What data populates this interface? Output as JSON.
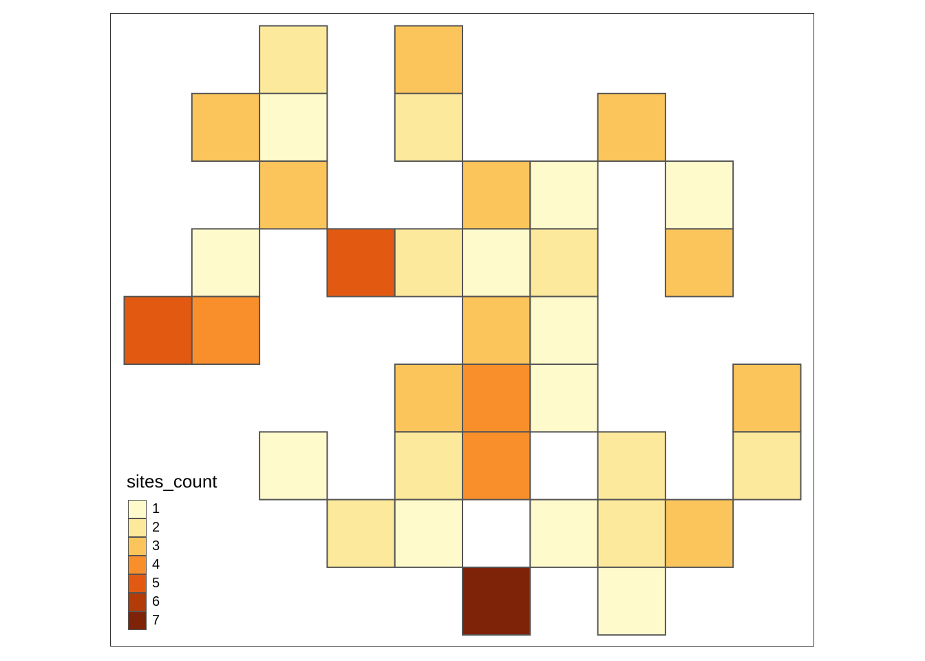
{
  "legend": {
    "title": "sites_count",
    "classes": [
      {
        "label": "1",
        "color": "#FFFACC"
      },
      {
        "label": "2",
        "color": "#FDE99B"
      },
      {
        "label": "3",
        "color": "#FCC55B"
      },
      {
        "label": "4",
        "color": "#F98F2A"
      },
      {
        "label": "5",
        "color": "#E25A12"
      },
      {
        "label": "6",
        "color": "#B33B08"
      },
      {
        "label": "7",
        "color": "#7F2308"
      }
    ]
  },
  "grid": {
    "columns": 10,
    "rows": 9,
    "cells": [
      {
        "col": 2,
        "row": 0,
        "value": 2
      },
      {
        "col": 4,
        "row": 0,
        "value": 3
      },
      {
        "col": 1,
        "row": 1,
        "value": 3
      },
      {
        "col": 2,
        "row": 1,
        "value": 1
      },
      {
        "col": 4,
        "row": 1,
        "value": 2
      },
      {
        "col": 7,
        "row": 1,
        "value": 3
      },
      {
        "col": 2,
        "row": 2,
        "value": 3
      },
      {
        "col": 5,
        "row": 2,
        "value": 3
      },
      {
        "col": 6,
        "row": 2,
        "value": 1
      },
      {
        "col": 8,
        "row": 2,
        "value": 1
      },
      {
        "col": 1,
        "row": 3,
        "value": 1
      },
      {
        "col": 3,
        "row": 3,
        "value": 5
      },
      {
        "col": 4,
        "row": 3,
        "value": 2
      },
      {
        "col": 5,
        "row": 3,
        "value": 1
      },
      {
        "col": 6,
        "row": 3,
        "value": 2
      },
      {
        "col": 8,
        "row": 3,
        "value": 3
      },
      {
        "col": 0,
        "row": 4,
        "value": 5
      },
      {
        "col": 1,
        "row": 4,
        "value": 4
      },
      {
        "col": 5,
        "row": 4,
        "value": 3
      },
      {
        "col": 6,
        "row": 4,
        "value": 1
      },
      {
        "col": 4,
        "row": 5,
        "value": 3
      },
      {
        "col": 5,
        "row": 5,
        "value": 4
      },
      {
        "col": 6,
        "row": 5,
        "value": 1
      },
      {
        "col": 9,
        "row": 5,
        "value": 3
      },
      {
        "col": 2,
        "row": 6,
        "value": 1
      },
      {
        "col": 4,
        "row": 6,
        "value": 2
      },
      {
        "col": 5,
        "row": 6,
        "value": 4
      },
      {
        "col": 7,
        "row": 6,
        "value": 2
      },
      {
        "col": 9,
        "row": 6,
        "value": 2
      },
      {
        "col": 3,
        "row": 7,
        "value": 2
      },
      {
        "col": 4,
        "row": 7,
        "value": 1
      },
      {
        "col": 6,
        "row": 7,
        "value": 1
      },
      {
        "col": 7,
        "row": 7,
        "value": 2
      },
      {
        "col": 8,
        "row": 7,
        "value": 3
      },
      {
        "col": 5,
        "row": 8,
        "value": 7
      },
      {
        "col": 7,
        "row": 8,
        "value": 1
      }
    ]
  },
  "colors": {
    "cell_border": "#555555",
    "frame_border": "#333333"
  }
}
